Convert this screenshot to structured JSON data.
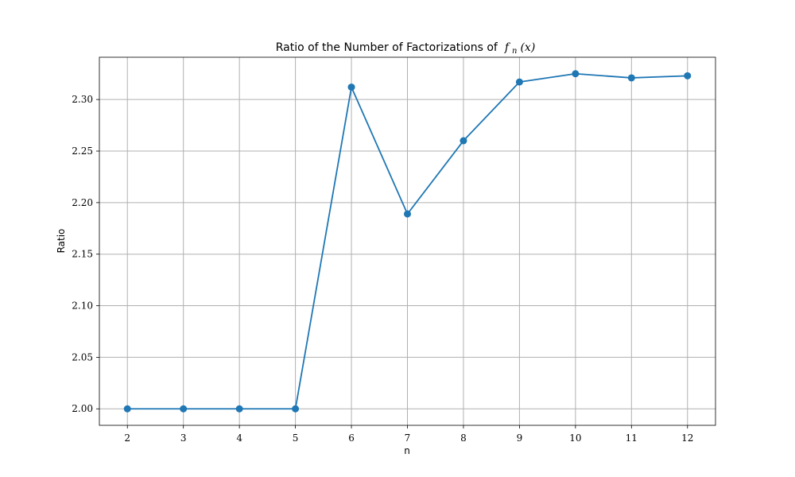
{
  "chart_data": {
    "type": "line",
    "title": "Ratio of the Number of Factorizations of",
    "title_math": {
      "func": "f",
      "sub": "n",
      "arg": "(x)"
    },
    "xlabel": "n",
    "ylabel": "Ratio",
    "xlim": [
      1.5,
      12.5
    ],
    "ylim": [
      1.984,
      2.341
    ],
    "xticks": [
      2,
      3,
      4,
      5,
      6,
      7,
      8,
      9,
      10,
      11,
      12
    ],
    "xtick_labels": [
      "2",
      "3",
      "4",
      "5",
      "6",
      "7",
      "8",
      "9",
      "10",
      "11",
      "12"
    ],
    "yticks": [
      2.0,
      2.05,
      2.1,
      2.15,
      2.2,
      2.25,
      2.3
    ],
    "ytick_labels": [
      "2.00",
      "2.05",
      "2.10",
      "2.15",
      "2.20",
      "2.25",
      "2.30"
    ],
    "grid": true,
    "series": [
      {
        "name": "Ratio",
        "color": "#1f77b4",
        "marker": "circle",
        "x": [
          2,
          3,
          4,
          5,
          6,
          7,
          8,
          9,
          10,
          11,
          12
        ],
        "y": [
          2.0,
          2.0,
          2.0,
          2.0,
          2.312,
          2.189,
          2.26,
          2.317,
          2.325,
          2.321,
          2.323
        ]
      }
    ]
  }
}
